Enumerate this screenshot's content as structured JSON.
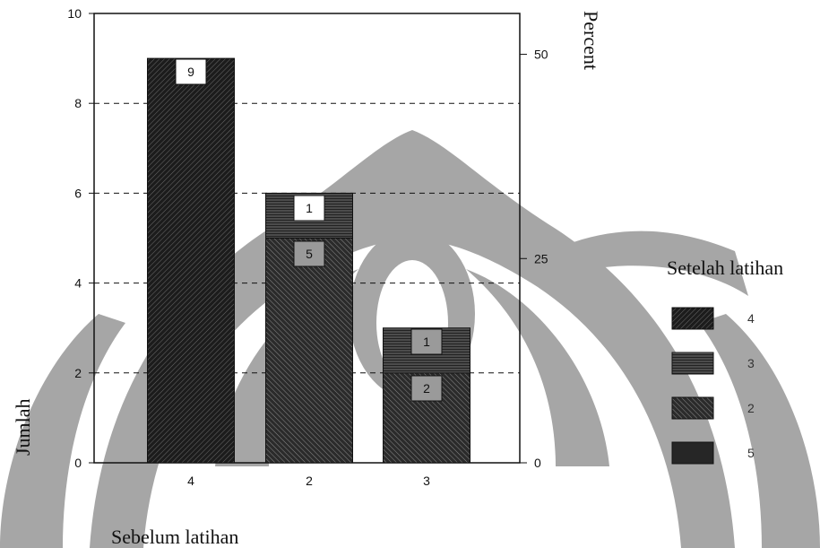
{
  "chart_data": {
    "type": "bar",
    "stacked": true,
    "categories": [
      "4",
      "2",
      "3"
    ],
    "xlabel": "Sebelum latihan",
    "ylabel": "Jumlah",
    "ylabel_right": "Percent",
    "ylim": [
      0,
      10
    ],
    "yticks": [
      0,
      2,
      4,
      6,
      8,
      10
    ],
    "ylim_right": [
      0,
      55
    ],
    "yticks_right": [
      0,
      25,
      50
    ],
    "grid": true,
    "legend_title": "Setelah latihan",
    "legend_position": "right",
    "series": [
      {
        "name": "5",
        "values": [
          0,
          0,
          0
        ],
        "color": "#2b2b2b"
      },
      {
        "name": "2",
        "values": [
          0,
          5,
          2
        ],
        "color": "#303030"
      },
      {
        "name": "3",
        "values": [
          0,
          1,
          1
        ],
        "color": "#444444"
      },
      {
        "name": "4",
        "values": [
          9,
          0,
          0
        ],
        "color": "#262626"
      }
    ],
    "data_labels": [
      {
        "category": "4",
        "text": "9",
        "value": 9
      },
      {
        "category": "2",
        "text": "1",
        "value": 1
      },
      {
        "category": "2",
        "text": "5",
        "value": 5
      },
      {
        "category": "3",
        "text": "1",
        "value": 1
      },
      {
        "category": "3",
        "text": "2",
        "value": 2
      }
    ],
    "legend": [
      "4",
      "3",
      "2",
      "5"
    ]
  }
}
